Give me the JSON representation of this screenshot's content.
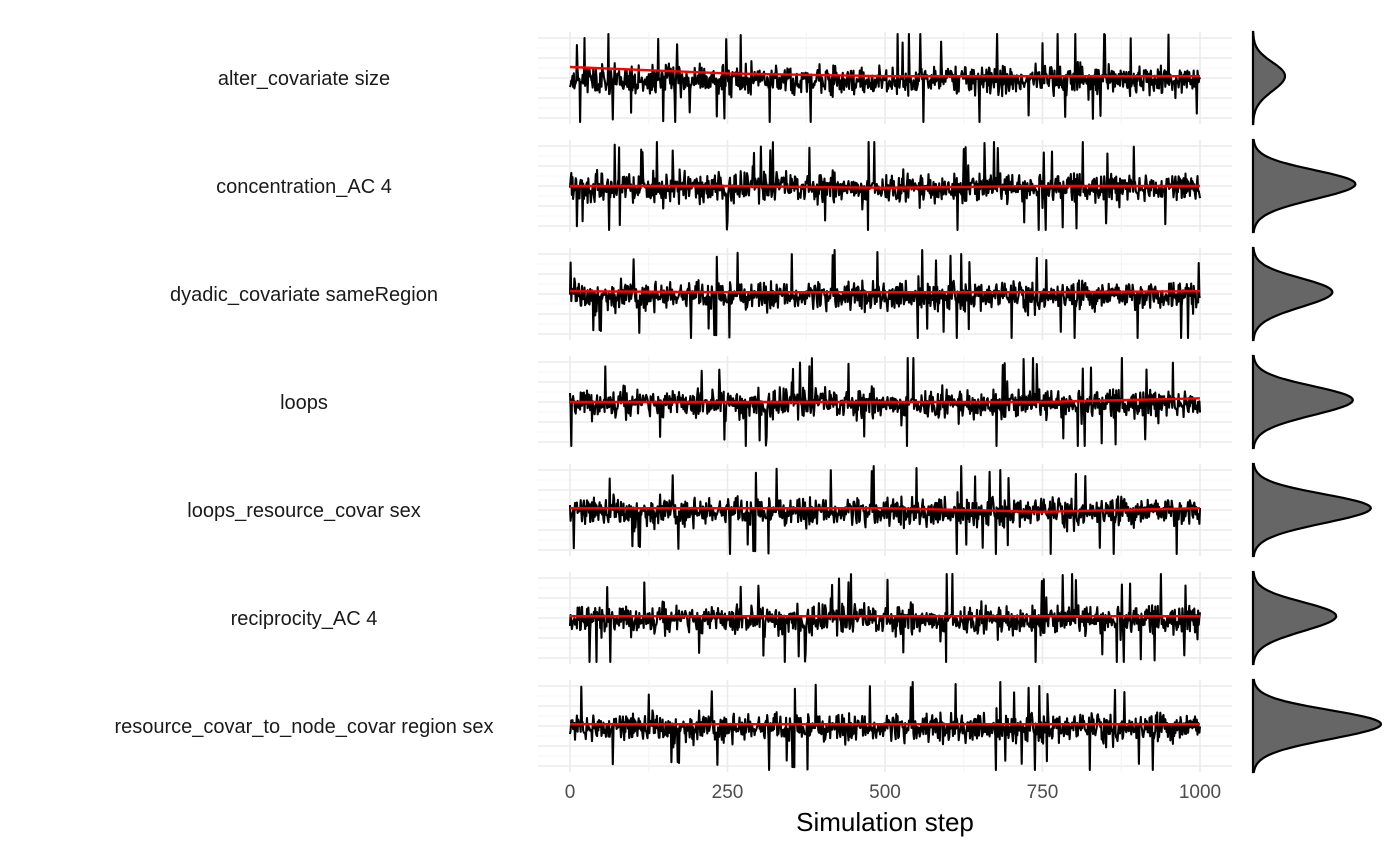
{
  "chart_data": {
    "type": "line",
    "title": "",
    "xlabel": "Simulation step",
    "ylabel": "",
    "xlim": [
      0,
      1000
    ],
    "x_ticks": [
      "0",
      "250",
      "500",
      "750",
      "1000"
    ],
    "x_tick_values": [
      0,
      250,
      500,
      750,
      1000
    ],
    "grid": true,
    "trace_color": "#000000",
    "trend_color": "#ff0000",
    "density_fill": "#666666",
    "density_line": "#000000",
    "n_steps": 1000,
    "series": [
      {
        "name": "alter_covariate size",
        "trend": [
          0.62,
          0.55,
          0.52,
          0.52,
          0.52
        ],
        "density_peak": 0.25
      },
      {
        "name": "concentration_AC 4",
        "trend": [
          0.5,
          0.5,
          0.48,
          0.5,
          0.5
        ],
        "density_peak": 0.8
      },
      {
        "name": "dyadic_covariate sameRegion",
        "trend": [
          0.53,
          0.52,
          0.52,
          0.52,
          0.53
        ],
        "density_peak": 0.62
      },
      {
        "name": "loops",
        "trend": [
          0.5,
          0.5,
          0.5,
          0.5,
          0.54
        ],
        "density_peak": 0.78
      },
      {
        "name": "loops_resource_covar sex",
        "trend": [
          0.52,
          0.52,
          0.52,
          0.48,
          0.52
        ],
        "density_peak": 0.92
      },
      {
        "name": "reciprocity_AC 4",
        "trend": [
          0.52,
          0.52,
          0.52,
          0.52,
          0.52
        ],
        "density_peak": 0.65
      },
      {
        "name": "resource_covar_to_node_covar region sex",
        "trend": [
          0.52,
          0.52,
          0.52,
          0.52,
          0.52
        ],
        "density_peak": 1.0
      }
    ]
  }
}
